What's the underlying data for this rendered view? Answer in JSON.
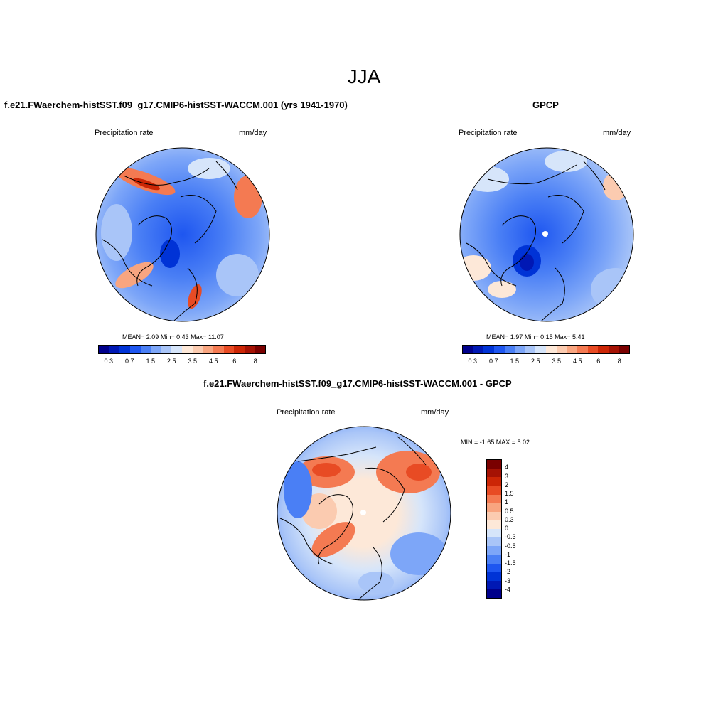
{
  "title": "JJA",
  "panels": {
    "model": {
      "title": "f.e21.FWaerchem-histSST.f09_g17.CMIP6-histSST-WACCM.001 (yrs 1941-1970)",
      "variable": "Precipitation rate",
      "units": "mm/day",
      "stats": {
        "mean_label": "MEAN=",
        "mean": "2.09",
        "min_label": "Min=",
        "min": "0.43",
        "max_label": "Max=",
        "max": "11.07"
      }
    },
    "obs": {
      "title": "GPCP",
      "variable": "Precipitation rate",
      "units": "mm/day",
      "stats": {
        "mean_label": "MEAN=",
        "mean": "1.97",
        "min_label": "Min=",
        "min": "0.15",
        "max_label": "Max=",
        "max": "5.41"
      }
    },
    "diff": {
      "title": "f.e21.FWaerchem-histSST.f09_g17.CMIP6-histSST-WACCM.001 - GPCP",
      "variable": "Precipitation rate",
      "units": "mm/day",
      "minmax": "MIN =  -1.65 MAX =   5.02"
    }
  },
  "colorbars": {
    "precip": {
      "colors": [
        "#00008b",
        "#0018b4",
        "#0033d6",
        "#1e56f0",
        "#4a7ff5",
        "#7da6f8",
        "#a9c5f8",
        "#d6e5fa",
        "#fde8d8",
        "#fbcbb0",
        "#f8a580",
        "#f47a52",
        "#e84b24",
        "#cc2606",
        "#a51204",
        "#7a0000"
      ],
      "tick_labels": [
        "0.3",
        "0.7",
        "1.5",
        "2.5",
        "3.5",
        "4.5",
        "6",
        "8"
      ]
    },
    "diff": {
      "colors": [
        "#7a0000",
        "#a51204",
        "#cc2606",
        "#e84b24",
        "#f47a52",
        "#f8a580",
        "#fbcbb0",
        "#fde8d8",
        "#d6e5fa",
        "#a9c5f8",
        "#7da6f8",
        "#4a7ff5",
        "#1e56f0",
        "#0033d6",
        "#0018b4",
        "#00008b"
      ],
      "tick_labels": [
        "4",
        "3",
        "2",
        "1.5",
        "1",
        "0.5",
        "0.3",
        "0",
        "-0.3",
        "-0.5",
        "-1",
        "-1.5",
        "-2",
        "-3",
        "-4"
      ]
    }
  }
}
